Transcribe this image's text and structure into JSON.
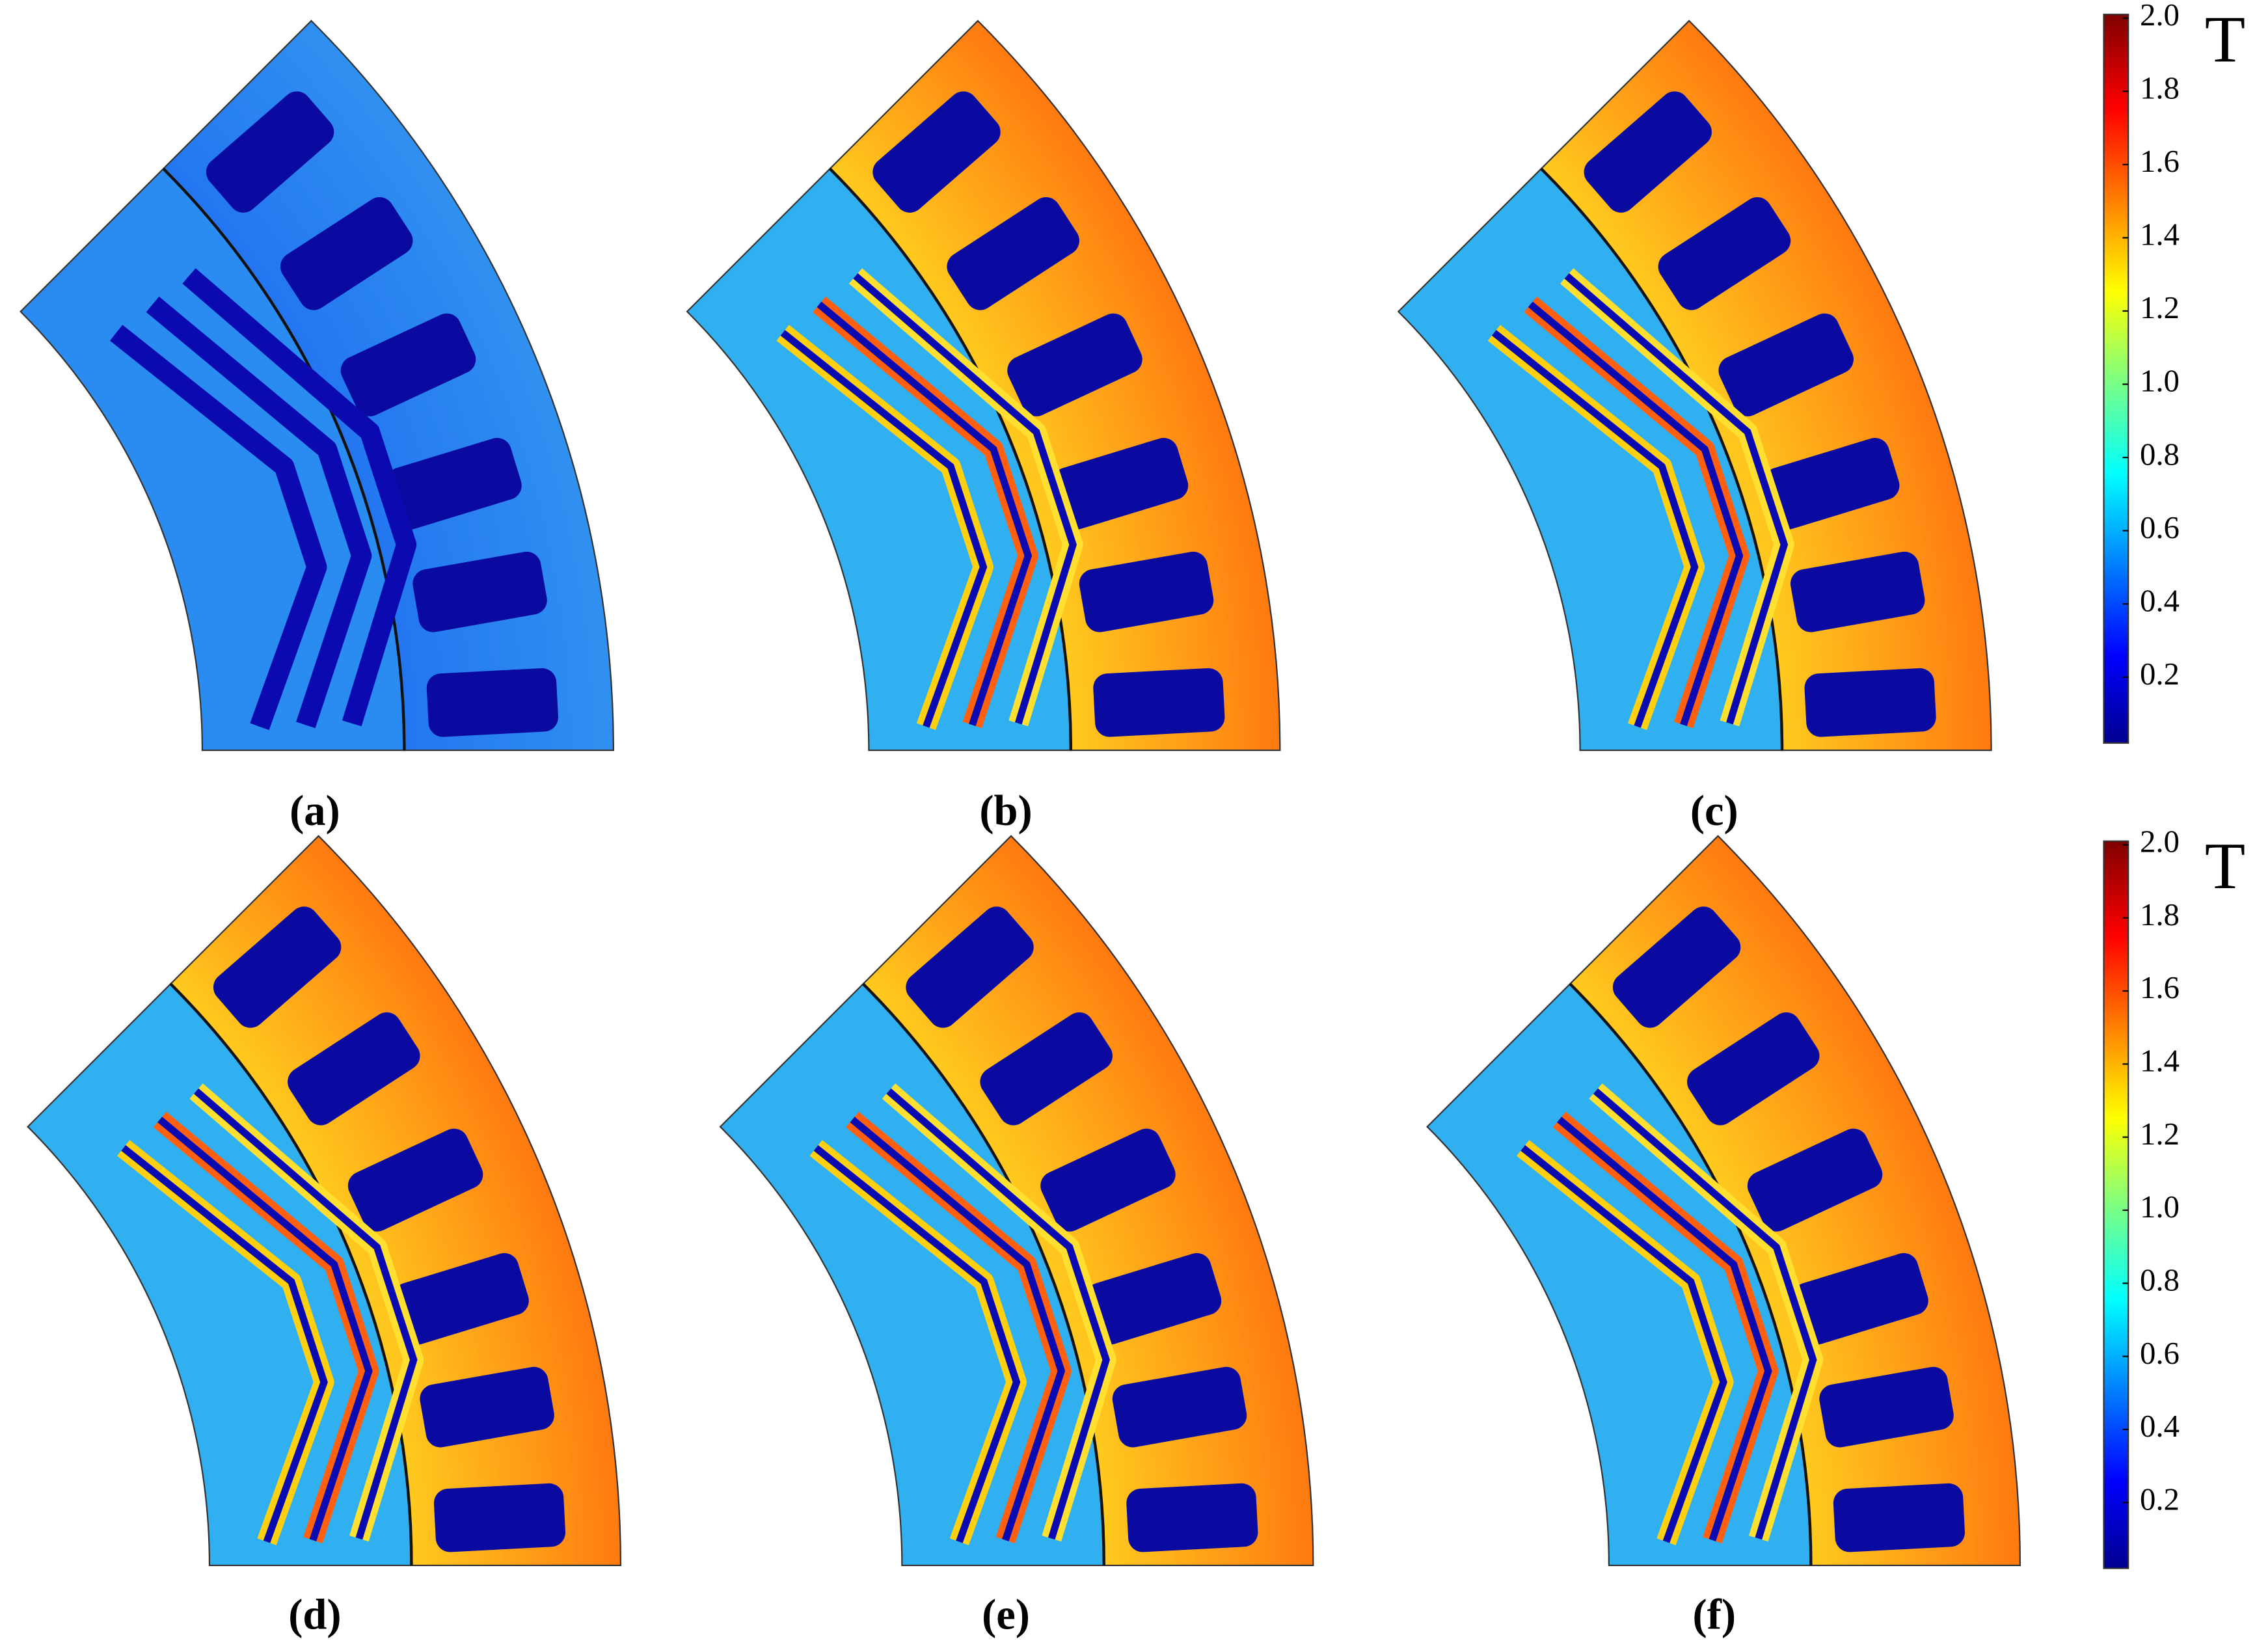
{
  "panels": [
    {
      "label": "(a)"
    },
    {
      "label": "(b)"
    },
    {
      "label": "(c)"
    },
    {
      "label": "(d)"
    },
    {
      "label": "(e)"
    },
    {
      "label": "(f)"
    }
  ],
  "colorbars": [
    {
      "unit": "T",
      "range": [
        0.02,
        2.01
      ],
      "ticks": [
        0.2,
        0.4,
        0.6,
        0.8,
        {
          "value": 1,
          "label": "1.0"
        },
        1.2,
        1.4,
        1.6,
        1.8,
        {
          "value": 2,
          "label": "2.0"
        }
      ]
    },
    {
      "unit": "T",
      "range": [
        0.02,
        2.01
      ],
      "ticks": [
        0.2,
        0.4,
        0.6,
        0.8,
        {
          "value": 1,
          "label": "1.0"
        },
        1.2,
        1.4,
        1.6,
        1.8,
        {
          "value": 2,
          "label": "2.0"
        }
      ]
    }
  ]
}
